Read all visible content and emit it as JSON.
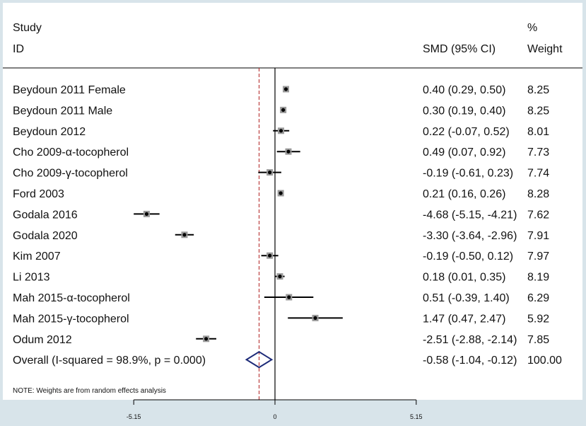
{
  "chart_data": {
    "type": "forest",
    "headers": {
      "study_line1": "Study",
      "study_line2": "ID",
      "effect": "SMD (95% CI)",
      "weight_line1": "%",
      "weight_line2": "Weight"
    },
    "studies": [
      {
        "label": "Beydoun 2011 Female",
        "smd": 0.4,
        "lo": 0.29,
        "hi": 0.5,
        "ci_text": "0.40 (0.29, 0.50)",
        "weight": "8.25"
      },
      {
        "label": "Beydoun 2011 Male",
        "smd": 0.3,
        "lo": 0.19,
        "hi": 0.4,
        "ci_text": "0.30 (0.19, 0.40)",
        "weight": "8.25"
      },
      {
        "label": "Beydoun 2012",
        "smd": 0.22,
        "lo": -0.07,
        "hi": 0.52,
        "ci_text": "0.22 (-0.07, 0.52)",
        "weight": "8.01"
      },
      {
        "label": "Cho 2009-α-tocopherol",
        "smd": 0.49,
        "lo": 0.07,
        "hi": 0.92,
        "ci_text": "0.49 (0.07, 0.92)",
        "weight": "7.73"
      },
      {
        "label": "Cho 2009-γ-tocopherol",
        "smd": -0.19,
        "lo": -0.61,
        "hi": 0.23,
        "ci_text": "-0.19 (-0.61, 0.23)",
        "weight": "7.74"
      },
      {
        "label": "Ford 2003",
        "smd": 0.21,
        "lo": 0.16,
        "hi": 0.26,
        "ci_text": "0.21 (0.16, 0.26)",
        "weight": "8.28"
      },
      {
        "label": "Godala 2016",
        "smd": -4.68,
        "lo": -5.15,
        "hi": -4.21,
        "ci_text": "-4.68 (-5.15, -4.21)",
        "weight": "7.62"
      },
      {
        "label": "Godala 2020",
        "smd": -3.3,
        "lo": -3.64,
        "hi": -2.96,
        "ci_text": "-3.30 (-3.64, -2.96)",
        "weight": "7.91"
      },
      {
        "label": "Kim 2007",
        "smd": -0.19,
        "lo": -0.5,
        "hi": 0.12,
        "ci_text": "-0.19 (-0.50, 0.12)",
        "weight": "7.97"
      },
      {
        "label": "Li 2013",
        "smd": 0.18,
        "lo": 0.01,
        "hi": 0.35,
        "ci_text": "0.18 (0.01, 0.35)",
        "weight": "8.19"
      },
      {
        "label": "Mah 2015-α-tocopherol",
        "smd": 0.51,
        "lo": -0.39,
        "hi": 1.4,
        "ci_text": "0.51 (-0.39, 1.40)",
        "weight": "6.29"
      },
      {
        "label": "Mah 2015-γ-tocopherol",
        "smd": 1.47,
        "lo": 0.47,
        "hi": 2.47,
        "ci_text": "1.47 (0.47, 2.47)",
        "weight": "5.92"
      },
      {
        "label": "Odum 2012",
        "smd": -2.51,
        "lo": -2.88,
        "hi": -2.14,
        "ci_text": "-2.51 (-2.88, -2.14)",
        "weight": "7.85"
      }
    ],
    "overall": {
      "label": "Overall  (I-squared = 98.9%, p = 0.000)",
      "smd": -0.58,
      "lo": -1.04,
      "hi": -0.12,
      "ci_text": "-0.58 (-1.04, -0.12)",
      "weight": "100.00"
    },
    "note": "NOTE: Weights are from random effects analysis",
    "x_ticks": [
      {
        "value": -5.15,
        "label": "-5.15"
      },
      {
        "value": 0,
        "label": "0"
      },
      {
        "value": 5.15,
        "label": "5.15"
      }
    ],
    "null_line": 0,
    "colors": {
      "page_background": "#d8e4ea",
      "panel": "#ffffff",
      "text": "#111111",
      "ci_line": "#000000",
      "marker": "#000000",
      "marker_box": "#9a9a9a",
      "diamond": "#1c2a78",
      "overall_line": "#b22222"
    }
  }
}
